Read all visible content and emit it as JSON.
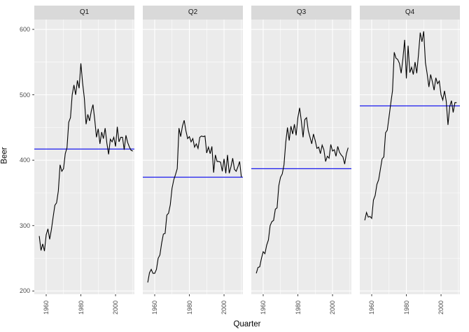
{
  "figure": {
    "y_axis_title": "Beer",
    "x_axis_title": "Quarter",
    "colors": {
      "panel_bg": "#ebebeb",
      "strip_bg": "#d9d9d9",
      "grid": "#ffffff",
      "series_line": "#000000",
      "mean_line": "#1a1aee",
      "tick_mark": "#333333",
      "tick_text": "#4d4d4d",
      "strip_text": "#1a1a1a"
    }
  },
  "chart_data": {
    "type": "line",
    "title": "",
    "xlabel": "Quarter",
    "ylabel": "Beer",
    "ylim": [
      195,
      615
    ],
    "y_ticks": [
      600,
      500,
      400,
      300,
      200
    ],
    "x_ticks": [
      1960,
      1980,
      2000
    ],
    "y_minor_gridlines": [
      250,
      350,
      450,
      550
    ],
    "x_minor_gridlines": [
      1970,
      1990,
      2010
    ],
    "grid": true,
    "legend_position": "none",
    "facets": [
      {
        "label": "Q1",
        "start_year": 1956,
        "mean": 417,
        "values": [
          284,
          262,
          272,
          261,
          286,
          295,
          279,
          294,
          313,
          331,
          335,
          353,
          393,
          383,
          387,
          410,
          419,
          458,
          465,
          500,
          515,
          500,
          522,
          510,
          548,
          518,
          495,
          455,
          470,
          460,
          475,
          485,
          462,
          435,
          448,
          425,
          443,
          433,
          449,
          426,
          409,
          432,
          428,
          435,
          421,
          451,
          428,
          435,
          435,
          416,
          438,
          427,
          420,
          415,
          414
        ]
      },
      {
        "label": "Q2",
        "start_year": 1956,
        "mean": 374,
        "values": [
          213,
          228,
          233,
          227,
          227,
          233,
          250,
          255,
          273,
          287,
          288,
          316,
          319,
          332,
          357,
          370,
          378,
          387,
          449,
          436,
          452,
          461,
          445,
          433,
          436,
          428,
          433,
          420,
          425,
          418,
          435,
          437,
          436,
          437,
          411,
          420,
          410,
          421,
          381,
          408,
          398,
          398,
          397,
          383,
          402,
          380,
          408,
          380,
          390,
          403,
          386,
          383,
          390,
          398,
          374
        ]
      },
      {
        "label": "Q3",
        "start_year": 1956,
        "mean": 387,
        "values": [
          227,
          236,
          237,
          250,
          260,
          257,
          270,
          278,
          300,
          306,
          308,
          325,
          327,
          361,
          374,
          379,
          393,
          427,
          450,
          430,
          452,
          440,
          455,
          438,
          465,
          480,
          460,
          435,
          462,
          465,
          445,
          435,
          425,
          440,
          430,
          418,
          420,
          410,
          423,
          416,
          398,
          406,
          403,
          424,
          414,
          416,
          406,
          421,
          412,
          408,
          405,
          394,
          410,
          419
        ]
      },
      {
        "label": "Q4",
        "start_year": 1956,
        "mean": 483,
        "values": [
          308,
          320,
          313,
          314,
          311,
          339,
          346,
          363,
          370,
          386,
          402,
          405,
          442,
          446,
          466,
          487,
          506,
          565,
          556,
          554,
          548,
          533,
          555,
          584,
          525,
          575,
          534,
          542,
          531,
          550,
          533,
          562,
          595,
          581,
          597,
          549,
          532,
          512,
          531,
          520,
          507,
          526,
          517,
          521,
          500,
          492,
          506,
          490,
          454,
          482,
          491,
          473,
          488,
          488
        ]
      }
    ]
  }
}
